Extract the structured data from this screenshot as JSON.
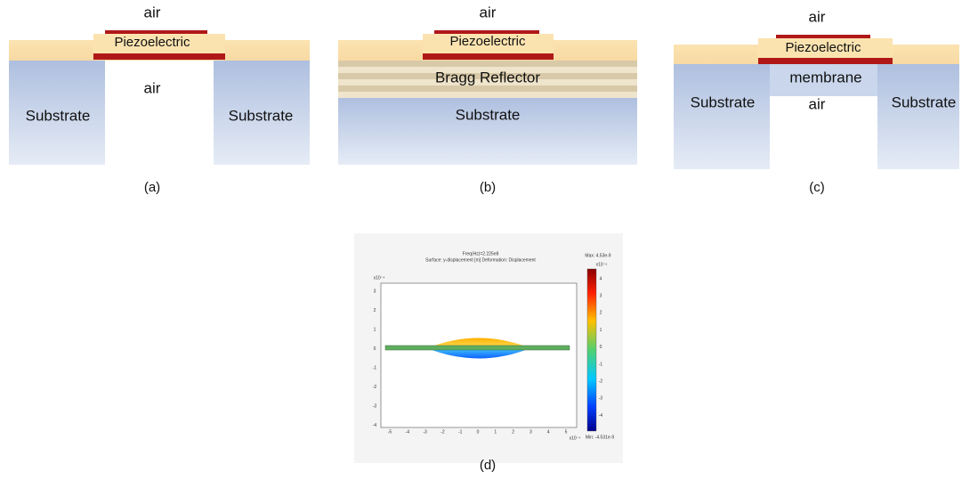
{
  "panel_a": {
    "air_top": "air",
    "piezo": "Piezoelectric",
    "air_gap": "air",
    "substrate_left": "Substrate",
    "substrate_right": "Substrate",
    "caption": "(a)"
  },
  "panel_b": {
    "air_top": "air",
    "piezo": "Piezoelectric",
    "bragg": "Bragg Reflector",
    "substrate": "Substrate",
    "caption": "(b)"
  },
  "panel_c": {
    "air_top": "air",
    "piezo": "Piezoelectric",
    "membrane": "membrane",
    "air_gap": "air",
    "substrate_left": "Substrate",
    "substrate_right": "Substrate",
    "caption": "(c)"
  },
  "panel_d": {
    "title_line1": "Freq(Hz)=2.225e8",
    "title_line2": "Surface: y-displacement [m]  Deformation: Displacement",
    "max": "Max: 4.53e-9",
    "min": "Min: -4.531e-9",
    "y_exponent": "x10⁻⁴",
    "x_exponent": "x10⁻⁴",
    "colorbar_exponent": "x10⁻⁹",
    "x_ticks": [
      -5,
      -4,
      -3,
      -2,
      -1,
      0,
      1,
      2,
      3,
      4,
      5
    ],
    "y_ticks": [
      3,
      2,
      1,
      0,
      -1,
      -2,
      -3,
      -4
    ],
    "colorbar_ticks": [
      4,
      3,
      2,
      1,
      0,
      -1,
      -2,
      -3,
      -4
    ],
    "caption": "(d)"
  }
}
